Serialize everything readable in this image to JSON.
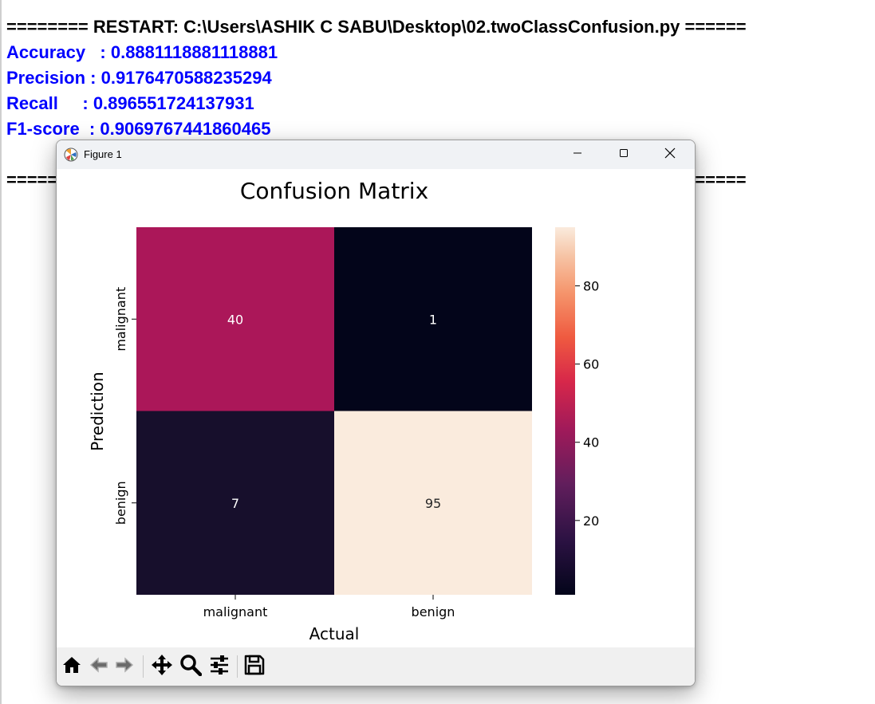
{
  "shell": {
    "lines": [
      {
        "text": "======== RESTART: C:\\Users\\ASHIK C SABU\\Desktop\\02.twoClassConfusion.py ======",
        "color": "black"
      },
      {
        "text": "Accuracy   : 0.8881118881118881",
        "color": "blue"
      },
      {
        "text": "Precision : 0.9176470588235294",
        "color": "blue"
      },
      {
        "text": "Recall     : 0.896551724137931",
        "color": "blue"
      },
      {
        "text": "F1-score  : 0.9069767441860465",
        "color": "blue"
      },
      {
        "text": "",
        "color": "black"
      },
      {
        "text": "======== RESTART: C:\\Users\\ASHIK C SABU\\Desktop\\02.twoClassConfusion.py ======",
        "color": "black"
      }
    ]
  },
  "window": {
    "title": "Figure 1",
    "icons": {
      "app": "matplotlib-icon",
      "minimize": "minimize-icon",
      "maximize": "maximize-icon",
      "close": "close-icon"
    }
  },
  "toolbar": {
    "buttons": [
      {
        "name": "home-icon"
      },
      {
        "name": "back-arrow-icon"
      },
      {
        "name": "forward-arrow-icon"
      },
      {
        "name": "pan-icon"
      },
      {
        "name": "zoom-icon"
      },
      {
        "name": "configure-subplots-icon"
      },
      {
        "name": "save-icon"
      }
    ]
  },
  "chart_data": {
    "type": "heatmap",
    "title": "Confusion Matrix",
    "xlabel": "Actual",
    "ylabel": "Prediction",
    "x_categories": [
      "malignant",
      "benign"
    ],
    "y_categories": [
      "malignant",
      "benign"
    ],
    "values": [
      [
        40,
        1
      ],
      [
        7,
        95
      ]
    ],
    "annotations": [
      "40",
      "1",
      "7",
      "95"
    ],
    "colormap": "rocket",
    "colorbar": {
      "range": [
        1,
        95
      ],
      "ticks": [
        20,
        40,
        60,
        80
      ],
      "tick_labels": [
        "20",
        "40",
        "60",
        "80"
      ]
    },
    "colors": {
      "cell_40": "#ab1759",
      "cell_1": "#03051a",
      "cell_7": "#170f2c",
      "cell_95": "#faebdd"
    }
  }
}
